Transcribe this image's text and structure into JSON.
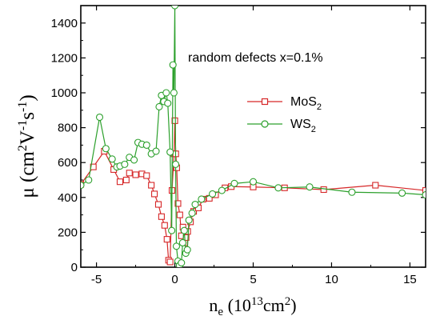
{
  "chart_data": {
    "type": "line",
    "annotation": "random defects x=0.1%",
    "xlabel": {
      "main": "n",
      "sub": "e",
      "rest": " (10",
      "sup": "13",
      "tail": "cm",
      "sup2": "2",
      "close": ")"
    },
    "ylabel": {
      "main": "μ (cm",
      "sup1": "2",
      "mid": "V",
      "sup2": "-1",
      "mid2": "s",
      "sup3": "-1",
      "close": ")"
    },
    "xlim": [
      -6,
      16
    ],
    "ylim": [
      0,
      1500
    ],
    "xticks": [
      -5,
      0,
      5,
      10,
      15
    ],
    "yticks": [
      0,
      200,
      400,
      600,
      800,
      1000,
      1200,
      1400
    ],
    "grid": false,
    "legend": {
      "position": "middle-right"
    },
    "series": [
      {
        "name": "MoS2",
        "name_main": "MoS",
        "name_sub": "2",
        "color": "#d62728",
        "marker": "square",
        "points": [
          [
            -6.0,
            475
          ],
          [
            -5.2,
            575
          ],
          [
            -4.5,
            665
          ],
          [
            -3.9,
            560
          ],
          [
            -3.5,
            490
          ],
          [
            -3.1,
            500
          ],
          [
            -2.9,
            540
          ],
          [
            -2.5,
            530
          ],
          [
            -2.1,
            535
          ],
          [
            -1.8,
            525
          ],
          [
            -1.5,
            470
          ],
          [
            -1.3,
            420
          ],
          [
            -1.05,
            360
          ],
          [
            -0.85,
            290
          ],
          [
            -0.65,
            240
          ],
          [
            -0.5,
            160
          ],
          [
            -0.4,
            40
          ],
          [
            -0.3,
            30
          ],
          [
            -0.18,
            440
          ],
          [
            -0.05,
            650
          ],
          [
            0.0,
            840
          ],
          [
            0.06,
            650
          ],
          [
            0.12,
            570
          ],
          [
            0.2,
            365
          ],
          [
            0.32,
            300
          ],
          [
            0.42,
            180
          ],
          [
            0.52,
            230
          ],
          [
            0.62,
            140
          ],
          [
            0.72,
            170
          ],
          [
            0.82,
            205
          ],
          [
            1.0,
            260
          ],
          [
            1.2,
            320
          ],
          [
            1.5,
            340
          ],
          [
            1.8,
            390
          ],
          [
            2.2,
            395
          ],
          [
            2.6,
            415
          ],
          [
            3.2,
            455
          ],
          [
            3.6,
            462
          ],
          [
            5.0,
            460
          ],
          [
            7.0,
            455
          ],
          [
            9.5,
            445
          ],
          [
            12.8,
            470
          ],
          [
            16.0,
            440
          ]
        ]
      },
      {
        "name": "WS2",
        "name_main": "WS",
        "name_sub": "2",
        "color": "#2ca02c",
        "marker": "circle",
        "points": [
          [
            -6.0,
            470
          ],
          [
            -5.5,
            500
          ],
          [
            -4.8,
            860
          ],
          [
            -4.4,
            680
          ],
          [
            -4.0,
            620
          ],
          [
            -3.7,
            575
          ],
          [
            -3.5,
            580
          ],
          [
            -3.2,
            590
          ],
          [
            -2.9,
            630
          ],
          [
            -2.6,
            615
          ],
          [
            -2.35,
            715
          ],
          [
            -2.1,
            705
          ],
          [
            -1.8,
            700
          ],
          [
            -1.5,
            650
          ],
          [
            -1.2,
            665
          ],
          [
            -1.0,
            920
          ],
          [
            -0.85,
            985
          ],
          [
            -0.7,
            950
          ],
          [
            -0.55,
            1000
          ],
          [
            -0.45,
            940
          ],
          [
            -0.3,
            660
          ],
          [
            -0.2,
            210
          ],
          [
            -0.12,
            1160
          ],
          [
            -0.06,
            1000
          ],
          [
            0.0,
            1500
          ],
          [
            0.05,
            590
          ],
          [
            0.1,
            120
          ],
          [
            0.2,
            35
          ],
          [
            0.3,
            10
          ],
          [
            0.42,
            25
          ],
          [
            0.5,
            140
          ],
          [
            0.6,
            210
          ],
          [
            0.7,
            80
          ],
          [
            0.8,
            100
          ],
          [
            0.9,
            270
          ],
          [
            1.1,
            310
          ],
          [
            1.3,
            360
          ],
          [
            1.7,
            390
          ],
          [
            2.4,
            420
          ],
          [
            3.0,
            440
          ],
          [
            3.8,
            480
          ],
          [
            5.0,
            490
          ],
          [
            6.6,
            455
          ],
          [
            8.6,
            460
          ],
          [
            11.3,
            430
          ],
          [
            14.5,
            425
          ],
          [
            16.0,
            415
          ]
        ]
      }
    ]
  }
}
